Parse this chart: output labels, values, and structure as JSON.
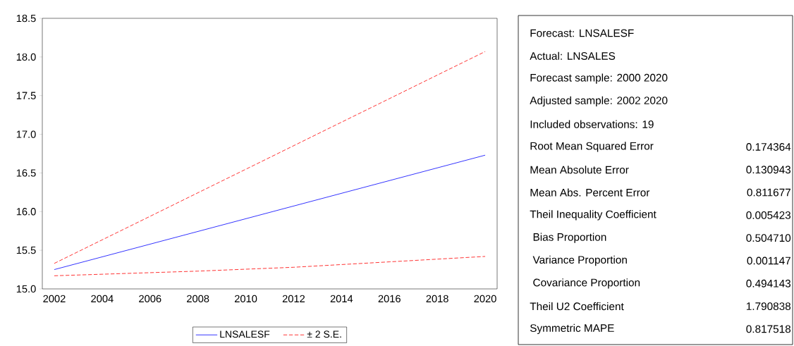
{
  "chart_data": [
    {
      "type": "line",
      "xlim": [
        2001.5,
        2020.5
      ],
      "ylim": [
        15,
        18.5
      ],
      "xticks": [
        2002,
        2004,
        2006,
        2008,
        2010,
        2012,
        2014,
        2016,
        2018,
        2020
      ],
      "yticks": [
        {
          "value": 15,
          "label": "15.0"
        },
        {
          "value": 15.5,
          "label": "15.5"
        },
        {
          "value": 16,
          "label": "16.0"
        },
        {
          "value": 16.5,
          "label": "16.5"
        },
        {
          "value": 17,
          "label": "17.0"
        },
        {
          "value": 17.5,
          "label": "17.5"
        },
        {
          "value": 18,
          "label": "18.0"
        },
        {
          "value": 18.5,
          "label": "18.5"
        }
      ],
      "legend": "bottom",
      "series": [
        {
          "name": "LNSALESF",
          "color": "#0000ff",
          "line_style": "solid",
          "x": [
            2002,
            2020
          ],
          "values": [
            15.25,
            16.73
          ]
        },
        {
          "name": "± 2 S.E.",
          "color": "#ff0000",
          "line_style": "dashed",
          "x": [
            2002,
            2020
          ],
          "values": [
            15.33,
            18.07
          ]
        },
        {
          "color": "#ff0000",
          "line_style": "dashed",
          "x": [
            2002,
            2008,
            2012,
            2016,
            2020
          ],
          "values": [
            15.17,
            15.23,
            15.28,
            15.35,
            15.42
          ]
        }
      ]
    },
    {
      "type": "other",
      "categories": [
        "Forecast: LNSALESF",
        "Actual: LNSALES",
        "Forecast sample: 2000 2020",
        "Adjusted sample: 2002 2020",
        "Included observations: 19",
        "Root Mean Squared Error",
        "Mean Absolute Error",
        "Mean Abs. Percent Error",
        "Theil Inequality Coefficient",
        "   Bias Proportion",
        "   Variance Proportion",
        "   Covariance Proportion",
        "Theil U2 Coefficient",
        "Symmetric MAPE"
      ],
      "value_labels": [
        null,
        null,
        null,
        null,
        null,
        "0.174364",
        "0.130943",
        "0.811677",
        "0.005423",
        "0.504710",
        "0.001147",
        "0.494143",
        "1.790838",
        "0.817518"
      ]
    }
  ]
}
